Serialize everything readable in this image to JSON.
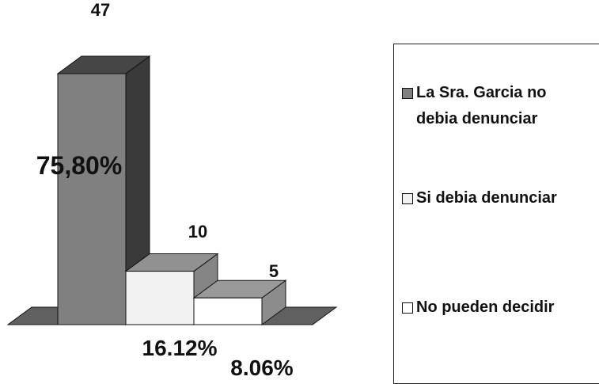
{
  "chart_data": {
    "type": "bar3d",
    "categories": [
      "La Sra. Garcia no debia denunciar",
      "Si debia denunciar",
      "No pueden decidir"
    ],
    "values": [
      47,
      10,
      5
    ],
    "percent_labels": [
      "75,80%",
      "16.12%",
      "8.06%"
    ],
    "colors": [
      "#808080",
      "#f2f2f2",
      "#ffffff"
    ],
    "legend": "right"
  }
}
